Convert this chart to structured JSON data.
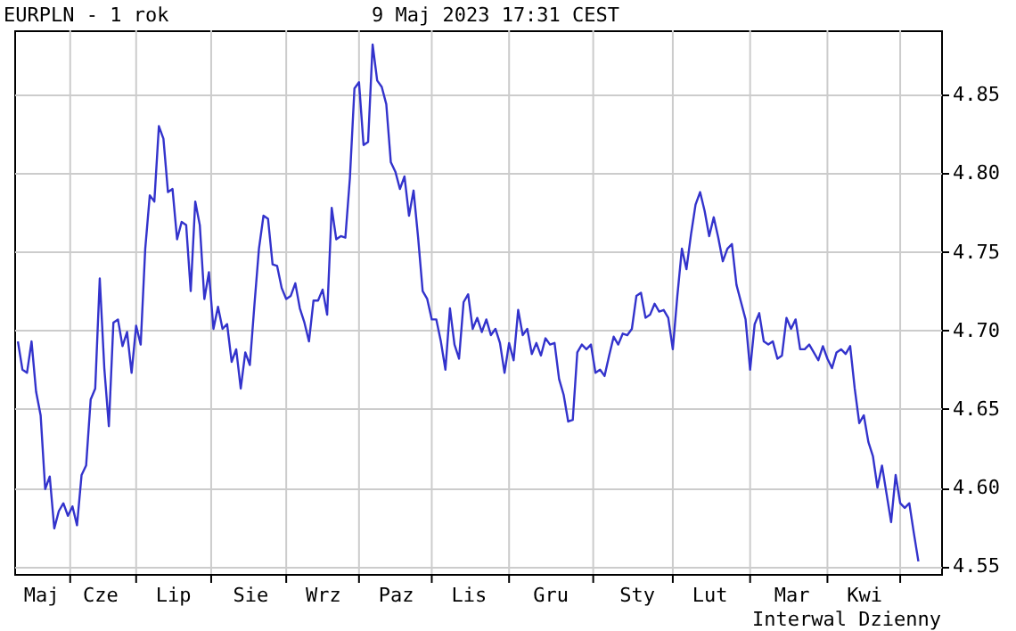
{
  "chart_data": {
    "type": "line",
    "title": "EURPLN - 1 rok",
    "subtitle": "9 Maj 2023 17:31 CEST",
    "annotations": [
      "Interwal Dzienny"
    ],
    "categories": [
      null,
      null,
      null,
      null,
      null,
      "Maj",
      null,
      null,
      null,
      null,
      null,
      null,
      null,
      null,
      null,
      null,
      null,
      null,
      "Cze",
      null,
      null,
      null,
      null,
      null,
      null,
      null,
      null,
      null,
      null,
      null,
      null,
      null,
      null,
      null,
      "Lip",
      null,
      null,
      null,
      null,
      null,
      null,
      null,
      null,
      null,
      null,
      null,
      null,
      null,
      null,
      null,
      null,
      "Sie",
      null,
      null,
      null,
      null,
      null,
      null,
      null,
      null,
      null,
      null,
      null,
      null,
      null,
      null,
      null,
      "Wrz",
      null,
      null,
      null,
      null,
      null,
      null,
      null,
      null,
      null,
      null,
      null,
      null,
      null,
      null,
      null,
      "Paz",
      null,
      null,
      null,
      null,
      null,
      null,
      null,
      null,
      null,
      null,
      null,
      null,
      null,
      null,
      null,
      "Lis",
      null,
      null,
      null,
      null,
      null,
      null,
      null,
      null,
      null,
      null,
      null,
      null,
      null,
      null,
      null,
      null,
      null,
      "Gru",
      null,
      null,
      null,
      null,
      null,
      null,
      null,
      null,
      null,
      null,
      null,
      null,
      null,
      null,
      null,
      null,
      null,
      null,
      "Sty",
      null,
      null,
      null,
      null,
      null,
      null,
      null,
      null,
      null,
      null,
      null,
      null,
      null,
      null,
      null,
      "Lut",
      null,
      null,
      null,
      null,
      null,
      null,
      null,
      null,
      null,
      null,
      null,
      null,
      null,
      null,
      null,
      null,
      null,
      "Mar",
      null,
      null,
      null,
      null,
      null,
      null,
      null,
      null,
      null,
      null,
      null,
      null,
      null,
      null,
      null,
      "Kwi",
      null,
      null,
      null,
      null,
      null,
      null,
      null,
      null,
      null,
      null,
      null,
      null
    ],
    "series": [
      {
        "color": "#3333cc",
        "values": [
          4.693,
          4.675,
          4.673,
          4.693,
          4.661,
          4.646,
          4.599,
          4.607,
          4.574,
          4.585,
          4.59,
          4.582,
          4.588,
          4.576,
          4.608,
          4.614,
          4.656,
          4.663,
          4.733,
          4.676,
          4.639,
          4.705,
          4.707,
          4.69,
          4.699,
          4.673,
          4.703,
          4.691,
          4.752,
          4.786,
          4.782,
          4.83,
          4.822,
          4.788,
          4.79,
          4.758,
          4.769,
          4.767,
          4.725,
          4.782,
          4.767,
          4.72,
          4.737,
          4.701,
          4.715,
          4.701,
          4.704,
          4.68,
          4.688,
          4.663,
          4.686,
          4.678,
          4.716,
          4.752,
          4.773,
          4.771,
          4.742,
          4.741,
          4.727,
          4.72,
          4.722,
          4.73,
          4.714,
          4.705,
          4.693,
          4.719,
          4.719,
          4.726,
          4.71,
          4.778,
          4.758,
          4.76,
          4.759,
          4.797,
          4.854,
          4.858,
          4.818,
          4.82,
          4.882,
          4.859,
          4.855,
          4.844,
          4.807,
          4.801,
          4.79,
          4.798,
          4.773,
          4.789,
          4.759,
          4.725,
          4.72,
          4.707,
          4.707,
          4.693,
          4.675,
          4.714,
          4.691,
          4.682,
          4.718,
          4.723,
          4.701,
          4.708,
          4.699,
          4.707,
          4.697,
          4.701,
          4.692,
          4.673,
          4.692,
          4.681,
          4.713,
          4.697,
          4.701,
          4.685,
          4.692,
          4.684,
          4.695,
          4.691,
          4.692,
          4.669,
          4.659,
          4.642,
          4.643,
          4.686,
          4.691,
          4.688,
          4.691,
          4.673,
          4.675,
          4.671,
          4.684,
          4.696,
          4.691,
          4.698,
          4.697,
          4.701,
          4.722,
          4.724,
          4.708,
          4.71,
          4.717,
          4.712,
          4.713,
          4.708,
          4.688,
          4.722,
          4.752,
          4.739,
          4.761,
          4.78,
          4.788,
          4.776,
          4.76,
          4.772,
          4.759,
          4.744,
          4.752,
          4.755,
          4.729,
          4.718,
          4.707,
          4.675,
          4.704,
          4.711,
          4.693,
          4.691,
          4.693,
          4.682,
          4.684,
          4.708,
          4.701,
          4.707,
          4.688,
          4.688,
          4.691,
          4.686,
          4.681,
          4.69,
          4.682,
          4.676,
          4.686,
          4.688,
          4.685,
          4.69,
          4.663,
          4.641,
          4.646,
          4.629,
          4.62,
          4.6,
          4.614,
          4.596,
          4.578,
          4.608,
          4.59,
          4.587,
          4.59,
          4.571,
          4.553
        ]
      }
    ],
    "ylim": [
      4.545,
      4.891
    ],
    "yticks": [
      4.55,
      {
        "value": 4.6,
        "label": "4.60"
      },
      4.65,
      {
        "value": 4.7,
        "label": "4.70"
      },
      4.75,
      {
        "value": 4.8,
        "label": "4.80"
      },
      4.85
    ],
    "grid": true,
    "line_style": "solid",
    "marker": "none"
  }
}
